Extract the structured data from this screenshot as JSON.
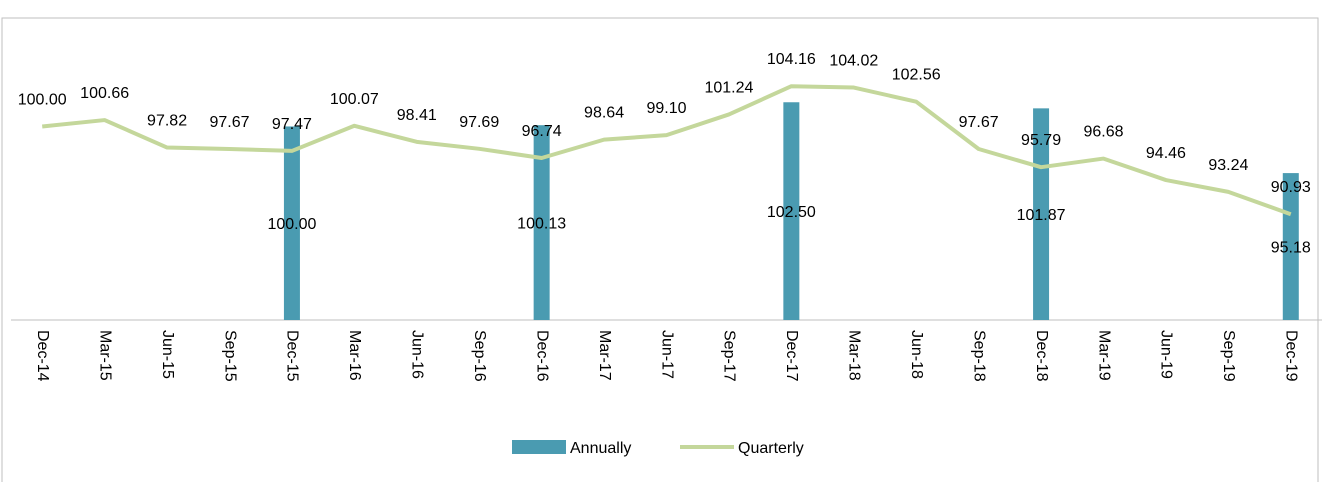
{
  "chart_data": {
    "type": "bar-line",
    "categories": [
      "Dec-14",
      "Mar-15",
      "Jun-15",
      "Sep-15",
      "Dec-15",
      "Mar-16",
      "Jun-16",
      "Sep-16",
      "Dec-16",
      "Mar-17",
      "Jun-17",
      "Sep-17",
      "Dec-17",
      "Mar-18",
      "Jun-18",
      "Sep-18",
      "Dec-18",
      "Mar-19",
      "Jun-19",
      "Sep-19",
      "Dec-19"
    ],
    "series": [
      {
        "name": "Annually",
        "type": "bar",
        "color": "#4a9bb1",
        "values": [
          null,
          null,
          null,
          null,
          100.0,
          null,
          null,
          null,
          100.13,
          null,
          null,
          null,
          102.5,
          null,
          null,
          null,
          101.87,
          null,
          null,
          null,
          95.18
        ],
        "value_labels": [
          null,
          null,
          null,
          null,
          "100.00",
          null,
          null,
          null,
          "100.13",
          null,
          null,
          null,
          "102.50",
          null,
          null,
          null,
          "101.87",
          null,
          null,
          null,
          "95.18"
        ]
      },
      {
        "name": "Quarterly",
        "type": "line",
        "color": "#c4d79b",
        "values": [
          100.0,
          100.66,
          97.82,
          97.67,
          97.47,
          100.07,
          98.41,
          97.69,
          96.74,
          98.64,
          99.1,
          101.24,
          104.16,
          104.02,
          102.56,
          97.67,
          95.79,
          96.68,
          94.46,
          93.24,
          90.93
        ],
        "value_labels": [
          "100.00",
          "100.66",
          "97.82",
          "97.67",
          "97.47",
          "100.07",
          "98.41",
          "97.69",
          "96.74",
          "98.64",
          "99.10",
          "101.24",
          "104.16",
          "104.02",
          "102.56",
          "97.67",
          "95.79",
          "96.68",
          "94.46",
          "93.24",
          "90.93"
        ]
      }
    ],
    "ylim": [
      80,
      111
    ]
  }
}
